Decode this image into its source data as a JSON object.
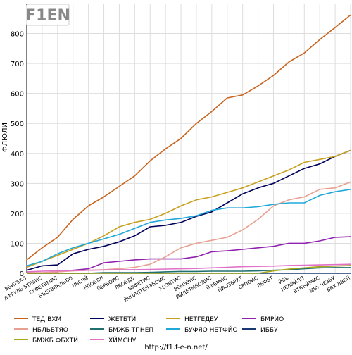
{
  "logo": {
    "text": "F1EN"
  },
  "footer": {
    "url": "http://f1.f-e-n.net/"
  },
  "chart_data": {
    "type": "line",
    "title": "",
    "xlabel": "",
    "ylabel": "ФЛЮЛИ",
    "ylim": [
      0,
      900
    ],
    "yticks": [
      0,
      100,
      200,
      300,
      400,
      500,
      600,
      700,
      800
    ],
    "grid": true,
    "legend_position": "bottom",
    "categories": [
      "ВБИТЕКО",
      "ДФРУЛЬ БТЕВИС",
      "БУФЕТВМИС",
      "БЪЕТВВКДЬБО",
      "НБСЧЙ",
      "НПОБЛП",
      "ЙЕРБОЙС",
      "ЛБОБДБ",
      "БУФЕТИС",
      "ЙЧЙЛПТЕНФБОИС",
      "ХОЗБТЙС",
      "ВЕМЭЗЙС",
      "ЙЙДЕТМБОДИС",
      "ЙФБМЙС",
      "ЙЙОЗБРХТ",
      "СРПОЙС",
      "ЛБФБТ",
      "ЙБЬ",
      "НЕЛЙЙЛП",
      "ВТБЪЙМИС",
      "МБУ ЧЕЗБУ",
      "БВХ ДВБЙ"
    ],
    "series": [
      {
        "name": "ТЕД ВХМ",
        "color": "#c8641e",
        "values": [
          45,
          85,
          120,
          180,
          225,
          255,
          290,
          325,
          375,
          415,
          450,
          500,
          540,
          585,
          595,
          625,
          660,
          705,
          735,
          780,
          820,
          862
        ]
      },
      {
        "name": "ЖЕТБТЙ",
        "color": "#00005a",
        "values": [
          10,
          25,
          28,
          65,
          80,
          90,
          105,
          125,
          155,
          160,
          170,
          190,
          205,
          235,
          265,
          285,
          300,
          325,
          350,
          365,
          390,
          410
        ]
      },
      {
        "name": "НЕТГЕДЕУ",
        "color": "#c8a020",
        "values": [
          20,
          40,
          60,
          80,
          100,
          125,
          155,
          170,
          180,
          200,
          225,
          245,
          255,
          270,
          285,
          305,
          325,
          345,
          370,
          380,
          390,
          410
        ]
      },
      {
        "name": "БМРЙО",
        "color": "#9020b0",
        "values": [
          0,
          0,
          5,
          10,
          15,
          35,
          40,
          45,
          48,
          48,
          48,
          55,
          72,
          75,
          80,
          85,
          90,
          100,
          100,
          108,
          120,
          122
        ]
      },
      {
        "name": "НБЛЬБТЯО",
        "color": "#e8a090",
        "values": [
          2,
          2,
          5,
          8,
          10,
          12,
          15,
          20,
          30,
          55,
          85,
          100,
          110,
          120,
          145,
          180,
          225,
          245,
          255,
          280,
          285,
          305
        ]
      },
      {
        "name": "БМЖБ ТПНЕП",
        "color": "#207070",
        "values": [
          0,
          0,
          0,
          0,
          0,
          2,
          2,
          2,
          3,
          5,
          6,
          6,
          7,
          7,
          7,
          8,
          10,
          12,
          15,
          18,
          19,
          19
        ]
      },
      {
        "name": "БУФЯО НБТФЙО",
        "color": "#20a8d8",
        "values": [
          25,
          40,
          65,
          85,
          100,
          115,
          130,
          150,
          170,
          178,
          183,
          192,
          210,
          218,
          218,
          222,
          230,
          235,
          235,
          260,
          272,
          280
        ]
      },
      {
        "name": "ИББУ",
        "color": "#183870",
        "values": [
          0,
          0,
          0,
          0,
          0,
          0,
          0,
          0,
          0,
          0,
          0,
          0,
          0,
          0,
          0,
          0,
          0,
          0,
          0,
          0,
          0,
          0
        ]
      },
      {
        "name": "БМЖБ ФБХТЙ",
        "color": "#a8a818",
        "values": [
          0,
          0,
          0,
          0,
          0,
          0,
          0,
          0,
          0,
          0,
          0,
          0,
          0,
          0,
          0,
          0,
          8,
          14,
          18,
          22,
          24,
          26
        ]
      },
      {
        "name": "ХЙМСНУ",
        "color": "#e070c8",
        "values": [
          5,
          7,
          8,
          9,
          10,
          11,
          12,
          12,
          13,
          14,
          15,
          16,
          18,
          20,
          22,
          23,
          24,
          26,
          27,
          28,
          29,
          30
        ]
      }
    ]
  }
}
